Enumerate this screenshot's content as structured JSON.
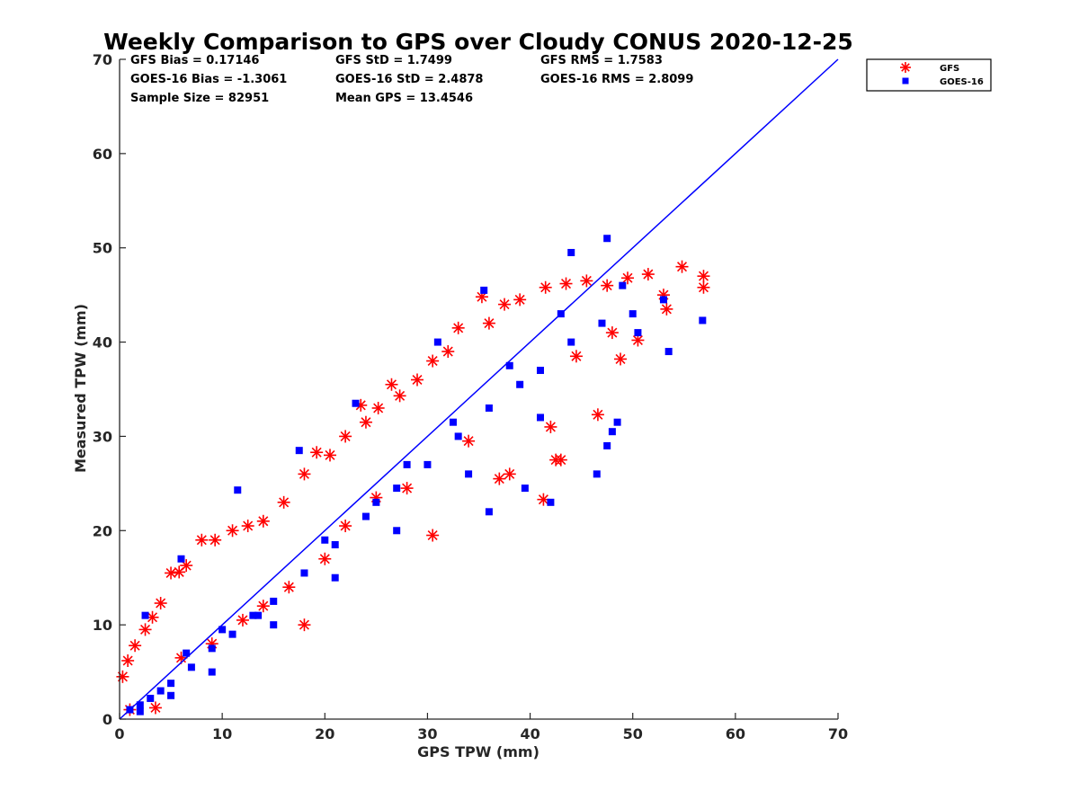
{
  "chart_data": {
    "type": "scatter",
    "title": "Weekly Comparison to GPS over Cloudy CONUS 2020-12-25",
    "xlabel": "GPS TPW (mm)",
    "ylabel": "Measured TPW (mm)",
    "xlim": [
      0,
      70
    ],
    "ylim": [
      0,
      70
    ],
    "xticks": [
      "0",
      "10",
      "20",
      "30",
      "40",
      "50",
      "60",
      "70"
    ],
    "yticks": [
      "0",
      "10",
      "20",
      "30",
      "40",
      "50",
      "60",
      "70"
    ],
    "grid": false,
    "legend_position": "outside-top-right",
    "stats": [
      [
        "GFS Bias = 0.17146",
        "GFS StD = 1.7499",
        "GFS RMS = 1.7583"
      ],
      [
        "GOES-16 Bias = -1.3061",
        "GOES-16 StD = 2.4878",
        "GOES-16 RMS = 2.8099"
      ],
      [
        "Sample Size = 82951",
        "Mean GPS = 13.4546",
        ""
      ]
    ],
    "reference_line": {
      "x": [
        0,
        70
      ],
      "y": [
        0,
        70
      ],
      "color": "#0000ff"
    },
    "series": [
      {
        "name": "GFS",
        "marker": "asterisk",
        "color": "#ff0000",
        "points": [
          [
            0.3,
            4.5
          ],
          [
            0.8,
            6.2
          ],
          [
            1.5,
            7.8
          ],
          [
            2.5,
            9.5
          ],
          [
            3.2,
            10.8
          ],
          [
            4.0,
            12.3
          ],
          [
            5.0,
            15.5
          ],
          [
            5.8,
            15.6
          ],
          [
            6.5,
            16.3
          ],
          [
            8.0,
            19.0
          ],
          [
            9.3,
            19.0
          ],
          [
            11.0,
            20.0
          ],
          [
            12.5,
            20.5
          ],
          [
            14.0,
            21.0
          ],
          [
            16.0,
            23.0
          ],
          [
            18.0,
            26.0
          ],
          [
            19.2,
            28.3
          ],
          [
            20.5,
            28.0
          ],
          [
            22.0,
            30.0
          ],
          [
            23.5,
            33.3
          ],
          [
            24.0,
            31.5
          ],
          [
            25.2,
            33.0
          ],
          [
            26.5,
            35.5
          ],
          [
            27.3,
            34.3
          ],
          [
            29.0,
            36.0
          ],
          [
            30.5,
            38.0
          ],
          [
            32.0,
            39.0
          ],
          [
            33.0,
            41.5
          ],
          [
            35.3,
            44.8
          ],
          [
            36.0,
            42.0
          ],
          [
            37.5,
            44.0
          ],
          [
            39.0,
            44.5
          ],
          [
            41.5,
            45.8
          ],
          [
            43.5,
            46.2
          ],
          [
            45.5,
            46.5
          ],
          [
            47.5,
            46.0
          ],
          [
            49.5,
            46.8
          ],
          [
            51.5,
            47.2
          ],
          [
            53.0,
            45.0
          ],
          [
            54.8,
            48.0
          ],
          [
            56.9,
            47.0
          ],
          [
            56.9,
            45.8
          ],
          [
            53.3,
            43.5
          ],
          [
            48.0,
            41.0
          ],
          [
            44.5,
            38.5
          ],
          [
            41.3,
            23.3
          ],
          [
            42.5,
            27.5
          ],
          [
            43.0,
            27.5
          ],
          [
            38.0,
            26.0
          ],
          [
            37.0,
            25.5
          ],
          [
            30.5,
            19.5
          ],
          [
            25.0,
            23.5
          ],
          [
            46.6,
            32.3
          ],
          [
            42.0,
            31.0
          ],
          [
            1.0,
            1.0
          ],
          [
            3.5,
            1.2
          ],
          [
            14.0,
            12.0
          ],
          [
            20.0,
            17.0
          ],
          [
            28.0,
            24.5
          ],
          [
            34.0,
            29.5
          ],
          [
            6.0,
            6.5
          ],
          [
            9.0,
            8.0
          ],
          [
            12.0,
            10.5
          ],
          [
            16.5,
            14.0
          ],
          [
            22.0,
            20.5
          ],
          [
            18.0,
            10.0
          ],
          [
            48.8,
            38.2
          ],
          [
            50.5,
            40.2
          ]
        ]
      },
      {
        "name": "GOES-16",
        "marker": "square",
        "color": "#0000ff",
        "points": [
          [
            1.0,
            1.0
          ],
          [
            2.0,
            1.5
          ],
          [
            3.0,
            2.2
          ],
          [
            4.0,
            3.0
          ],
          [
            5.0,
            3.8
          ],
          [
            7.0,
            5.5
          ],
          [
            9.0,
            7.5
          ],
          [
            11.0,
            9.0
          ],
          [
            13.0,
            11.0
          ],
          [
            15.0,
            12.5
          ],
          [
            18.0,
            15.5
          ],
          [
            21.0,
            18.5
          ],
          [
            24.0,
            21.5
          ],
          [
            27.0,
            24.5
          ],
          [
            30.0,
            27.0
          ],
          [
            33.0,
            30.0
          ],
          [
            36.0,
            33.0
          ],
          [
            39.0,
            35.5
          ],
          [
            41.0,
            37.0
          ],
          [
            44.0,
            40.0
          ],
          [
            47.0,
            42.0
          ],
          [
            50.0,
            43.0
          ],
          [
            53.0,
            44.5
          ],
          [
            56.8,
            42.3
          ],
          [
            47.5,
            51.0
          ],
          [
            44.0,
            49.5
          ],
          [
            35.5,
            45.5
          ],
          [
            31.0,
            40.0
          ],
          [
            23.0,
            33.5
          ],
          [
            17.5,
            28.5
          ],
          [
            11.5,
            24.3
          ],
          [
            6.0,
            17.0
          ],
          [
            2.5,
            11.0
          ],
          [
            42.0,
            23.0
          ],
          [
            36.0,
            22.0
          ],
          [
            39.5,
            24.5
          ],
          [
            46.5,
            26.0
          ],
          [
            47.5,
            29.0
          ],
          [
            48.0,
            30.5
          ],
          [
            48.5,
            31.5
          ],
          [
            53.5,
            39.0
          ],
          [
            50.5,
            41.0
          ],
          [
            41.0,
            32.0
          ],
          [
            34.0,
            26.0
          ],
          [
            27.0,
            20.0
          ],
          [
            21.0,
            15.0
          ],
          [
            15.0,
            10.0
          ],
          [
            9.0,
            5.0
          ],
          [
            5.0,
            2.5
          ],
          [
            2.0,
            0.8
          ],
          [
            13.5,
            11.0
          ],
          [
            20.0,
            19.0
          ],
          [
            28.0,
            27.0
          ],
          [
            38.0,
            37.5
          ],
          [
            43.0,
            43.0
          ],
          [
            49.0,
            46.0
          ],
          [
            25.0,
            23.0
          ],
          [
            32.5,
            31.5
          ],
          [
            10.0,
            9.5
          ],
          [
            6.5,
            7.0
          ]
        ]
      }
    ]
  }
}
